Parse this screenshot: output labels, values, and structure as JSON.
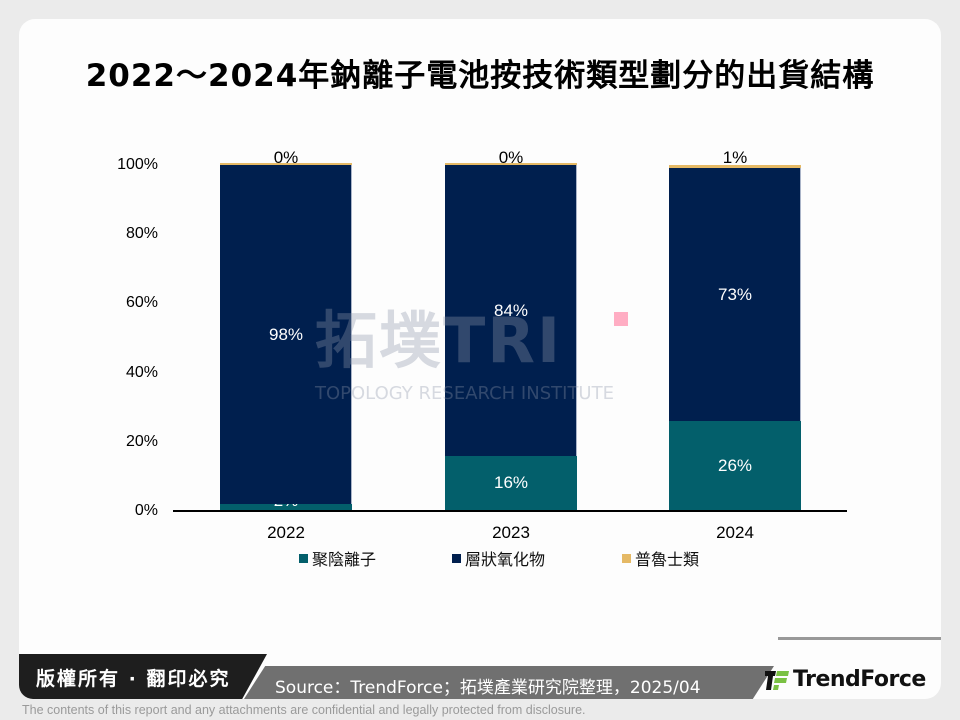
{
  "title": "2022～2024年鈉離子電池按技術類型劃分的出貨結構",
  "chart_data": {
    "type": "bar",
    "stacked": true,
    "title": "2022～2024年鈉離子電池按技術類型劃分的出貨結構",
    "xlabel": "",
    "ylabel": "",
    "ylim": [
      0,
      100
    ],
    "y_ticks": [
      "0%",
      "20%",
      "40%",
      "60%",
      "80%",
      "100%"
    ],
    "categories": [
      "2022",
      "2023",
      "2024"
    ],
    "series": [
      {
        "name": "聚陰離子",
        "color": "#035f6b",
        "values": [
          2,
          16,
          26
        ],
        "labels": [
          "2%",
          "16%",
          "26%"
        ]
      },
      {
        "name": "層狀氧化物",
        "color": "#001f4e",
        "values": [
          98,
          84,
          73
        ],
        "labels": [
          "98%",
          "84%",
          "73%"
        ]
      },
      {
        "name": "普魯士類",
        "color": "#e5b965",
        "values": [
          0,
          0,
          1
        ],
        "labels": [
          "0%",
          "0%",
          "1%"
        ]
      }
    ],
    "legend_position": "bottom",
    "grid": false
  },
  "legend": {
    "items": [
      {
        "label": "聚陰離子",
        "color": "#035f6b"
      },
      {
        "label": "層狀氧化物",
        "color": "#001f4e"
      },
      {
        "label": "普魯士類",
        "color": "#e5b965"
      }
    ]
  },
  "watermark": {
    "big": "拓墣TRI",
    "small": "TOPOLOGY RESEARCH INSTITUTE"
  },
  "footer": {
    "copyright": "版權所有 · 翻印必究",
    "source": "Source：TrendForce；拓墣產業研究院整理，2025/04",
    "brand": "TrendForce",
    "disclaimer": "The contents of this report and any attachments are confidential and legally protected from disclosure."
  }
}
